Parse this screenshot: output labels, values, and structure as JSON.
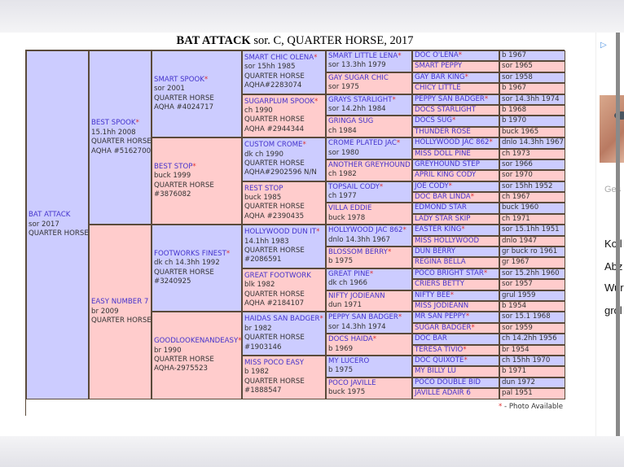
{
  "title": {
    "name": "BAT ATTACK",
    "rest": " sor. C, QUARTER HORSE, 2017"
  },
  "colors": {
    "male": "#ccccff",
    "female": "#ffcccc",
    "name": "#4433cc",
    "photo_star": "#e03030"
  },
  "footer": {
    "star": "*",
    "label": " - Photo Available"
  },
  "ad": {
    "icon": "ad-choices-icon",
    "lines": [
      "Ges",
      "Koll",
      "Abz",
      "Wur",
      "grol"
    ]
  },
  "pedigree": {
    "gen0": [
      {
        "name": "BAT ATTACK",
        "photo": false,
        "lines": [
          "sor 2017",
          "QUARTER HORSE"
        ]
      }
    ],
    "gen1": [
      {
        "name": "BEST SPOOK",
        "photo": true,
        "lines": [
          "15.1hh 2008",
          "QUARTER HORSE",
          "AQHA #5162700"
        ]
      },
      {
        "name": "EASY NUMBER 7",
        "photo": false,
        "lines": [
          "br 2009",
          "QUARTER HORSE"
        ]
      }
    ],
    "gen2": [
      {
        "name": "SMART SPOOK",
        "photo": true,
        "lines": [
          "sor 2001",
          "QUARTER HORSE",
          "AQHA #4024717"
        ]
      },
      {
        "name": "BEST STOP",
        "photo": true,
        "lines": [
          "buck 1999",
          "QUARTER HORSE",
          "#3876082"
        ]
      },
      {
        "name": "FOOTWORKS FINEST",
        "photo": true,
        "lines": [
          "dk ch 14.3hh 1992",
          "QUARTER HORSE",
          "#3240925"
        ]
      },
      {
        "name": "GOODLOOKENANDEASY",
        "photo": true,
        "lines": [
          "br 1990",
          "QUARTER HORSE",
          "AQHA-2975523"
        ]
      }
    ],
    "gen3": [
      {
        "name": "SMART CHIC OLENA",
        "photo": true,
        "lines": [
          "sor 15hh 1985",
          "QUARTER HORSE",
          "AQHA#2283074"
        ]
      },
      {
        "name": "SUGARPLUM SPOOK",
        "photo": true,
        "lines": [
          "ch 1990",
          "QUARTER HORSE",
          "AQHA #2944344"
        ]
      },
      {
        "name": "CUSTOM CROME",
        "photo": true,
        "lines": [
          "dk ch 1990",
          "QUARTER HORSE",
          "AQHA#2902596 N/N"
        ]
      },
      {
        "name": "REST STOP",
        "photo": false,
        "lines": [
          "buck 1985",
          "QUARTER HORSE",
          "AQHA #2390435"
        ]
      },
      {
        "name": "HOLLYWOOD DUN IT",
        "photo": true,
        "lines": [
          "14.1hh 1983",
          "QUARTER HORSE",
          "#2086591"
        ]
      },
      {
        "name": "GREAT FOOTWORK",
        "photo": false,
        "lines": [
          "blk 1982",
          "QUARTER HORSE",
          "AQHA #2184107"
        ]
      },
      {
        "name": "HAIDAS SAN BADGER",
        "photo": true,
        "lines": [
          "br 1982",
          "QUARTER HORSE",
          "#1903146"
        ]
      },
      {
        "name": "MISS POCO EASY",
        "photo": false,
        "lines": [
          "b 1982",
          "QUARTER HORSE",
          "#1888547"
        ]
      }
    ],
    "gen4": [
      {
        "name": "SMART LITTLE LENA",
        "photo": true,
        "lines": [
          "sor 13.3hh 1979"
        ]
      },
      {
        "name": "GAY SUGAR CHIC",
        "photo": false,
        "lines": [
          "sor 1975"
        ]
      },
      {
        "name": "GRAYS STARLIGHT",
        "photo": true,
        "lines": [
          "sor 14.2hh 1984"
        ]
      },
      {
        "name": "GRINGA SUG",
        "photo": false,
        "lines": [
          "ch 1984"
        ]
      },
      {
        "name": "CROME PLATED JAC",
        "photo": true,
        "lines": [
          "sor 1980"
        ]
      },
      {
        "name": "ANOTHER GREYHOUND",
        "photo": false,
        "lines": [
          "ch 1982"
        ]
      },
      {
        "name": "TOPSAIL CODY",
        "photo": true,
        "lines": [
          "ch 1977"
        ]
      },
      {
        "name": "VILLA EDDIE",
        "photo": false,
        "lines": [
          "buck 1978"
        ]
      },
      {
        "name": "HOLLYWOOD JAC 862",
        "photo": true,
        "lines": [
          "dnlo 14.3hh 1967"
        ]
      },
      {
        "name": "BLOSSOM BERRY",
        "photo": true,
        "lines": [
          "b 1975"
        ]
      },
      {
        "name": "GREAT PINE",
        "photo": true,
        "lines": [
          "dk ch 1966"
        ]
      },
      {
        "name": "NIFTY JODIEANN",
        "photo": false,
        "lines": [
          "dun 1971"
        ]
      },
      {
        "name": "PEPPY SAN BADGER",
        "photo": true,
        "lines": [
          "sor 14.3hh 1974"
        ]
      },
      {
        "name": "DOCS HAIDA",
        "photo": true,
        "lines": [
          "b 1969"
        ]
      },
      {
        "name": "MY LUCERO",
        "photo": false,
        "lines": [
          "b 1975"
        ]
      },
      {
        "name": "POCO JAVILLE",
        "photo": false,
        "lines": [
          "buck 1975"
        ]
      }
    ],
    "gen5": [
      {
        "name": "DOC O'LENA",
        "photo": true,
        "info": "b 1967"
      },
      {
        "name": "SMART PEPPY",
        "photo": false,
        "info": "sor 1965"
      },
      {
        "name": "GAY BAR KING",
        "photo": true,
        "info": "sor 1958"
      },
      {
        "name": "CHICY LITTLE",
        "photo": false,
        "info": "b 1967"
      },
      {
        "name": "PEPPY SAN BADGER",
        "photo": true,
        "info": "sor 14.3hh 1974"
      },
      {
        "name": "DOCS STARLIGHT",
        "photo": false,
        "info": "b 1968"
      },
      {
        "name": "DOCS SUG",
        "photo": true,
        "info": "b 1970"
      },
      {
        "name": "THUNDER ROSE",
        "photo": false,
        "info": "buck 1965"
      },
      {
        "name": "HOLLYWOOD JAC 862",
        "photo": true,
        "info": "dnlo 14.3hh 1967"
      },
      {
        "name": "MISS DOLL PINE",
        "photo": false,
        "info": "ch 1973"
      },
      {
        "name": "GREYHOUND STEP",
        "photo": false,
        "info": "sor 1966"
      },
      {
        "name": "APRIL KING CODY",
        "photo": false,
        "info": "sor 1970"
      },
      {
        "name": "JOE CODY",
        "photo": true,
        "info": "sor 15hh 1952"
      },
      {
        "name": "DOC BAR LINDA",
        "photo": true,
        "info": "ch 1967"
      },
      {
        "name": "EDMOND STAR",
        "photo": false,
        "info": "buck 1960"
      },
      {
        "name": "LADY STAR SKIP",
        "photo": false,
        "info": "ch 1971"
      },
      {
        "name": "EASTER KING",
        "photo": true,
        "info": "sor 15.1hh 1951"
      },
      {
        "name": "MISS HOLLYWOOD",
        "photo": false,
        "info": "dnlo 1947"
      },
      {
        "name": "DUN BERRY",
        "photo": false,
        "info": "gr buck ro 1961"
      },
      {
        "name": "REGINA BELLA",
        "photo": false,
        "info": "gr 1967"
      },
      {
        "name": "POCO BRIGHT STAR",
        "photo": true,
        "info": "sor 15.2hh 1960"
      },
      {
        "name": "CRIERS BETTY",
        "photo": false,
        "info": "sor 1957"
      },
      {
        "name": "NIFTY BEE",
        "photo": true,
        "info": "grul 1959"
      },
      {
        "name": "MISS JODIEANN",
        "photo": false,
        "info": "b 1954"
      },
      {
        "name": "MR SAN PEPPY",
        "photo": true,
        "info": "sor 15.1 1968"
      },
      {
        "name": "SUGAR BADGER",
        "photo": true,
        "info": "sor 1959"
      },
      {
        "name": "DOC BAR",
        "photo": false,
        "info": "ch 14.2hh 1956"
      },
      {
        "name": "TERESA TIVIO",
        "photo": true,
        "info": "br 1954"
      },
      {
        "name": "DOC QUIXOTE",
        "photo": true,
        "info": "ch 15hh 1970"
      },
      {
        "name": "MY BILLY LU",
        "photo": false,
        "info": "b 1971"
      },
      {
        "name": "POCO DOUBLE BID",
        "photo": false,
        "info": "dun 1972"
      },
      {
        "name": "JAVILLE ADAIR 6",
        "photo": false,
        "info": "pal 1951"
      }
    ]
  }
}
